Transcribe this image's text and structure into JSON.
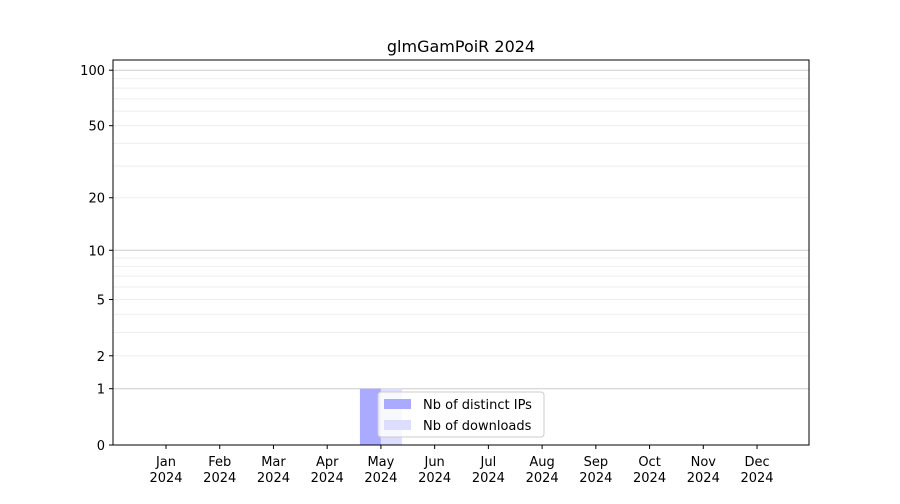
{
  "chart_data": {
    "type": "bar",
    "title": "glmGamPoiR 2024",
    "xlabel": "",
    "ylabel": "",
    "y_scale": "log(1+y)",
    "ylim": [
      0,
      114
    ],
    "y_ticks": [
      0,
      1,
      2,
      5,
      10,
      20,
      50,
      100
    ],
    "grid": true,
    "legend_position": "bottom-center",
    "categories": [
      "Jan\n2024",
      "Feb\n2024",
      "Mar\n2024",
      "Apr\n2024",
      "May\n2024",
      "Jun\n2024",
      "Jul\n2024",
      "Aug\n2024",
      "Sep\n2024",
      "Oct\n2024",
      "Nov\n2024",
      "Dec\n2024"
    ],
    "series": [
      {
        "name": "Nb of distinct IPs",
        "color": "#aaaaff",
        "values": [
          0,
          0,
          0,
          0,
          1,
          0,
          0,
          0,
          0,
          0,
          0,
          0
        ]
      },
      {
        "name": "Nb of downloads",
        "color": "#ddddff",
        "values": [
          0,
          0,
          0,
          0,
          1,
          0,
          0,
          0,
          0,
          0,
          0,
          0
        ]
      }
    ]
  }
}
